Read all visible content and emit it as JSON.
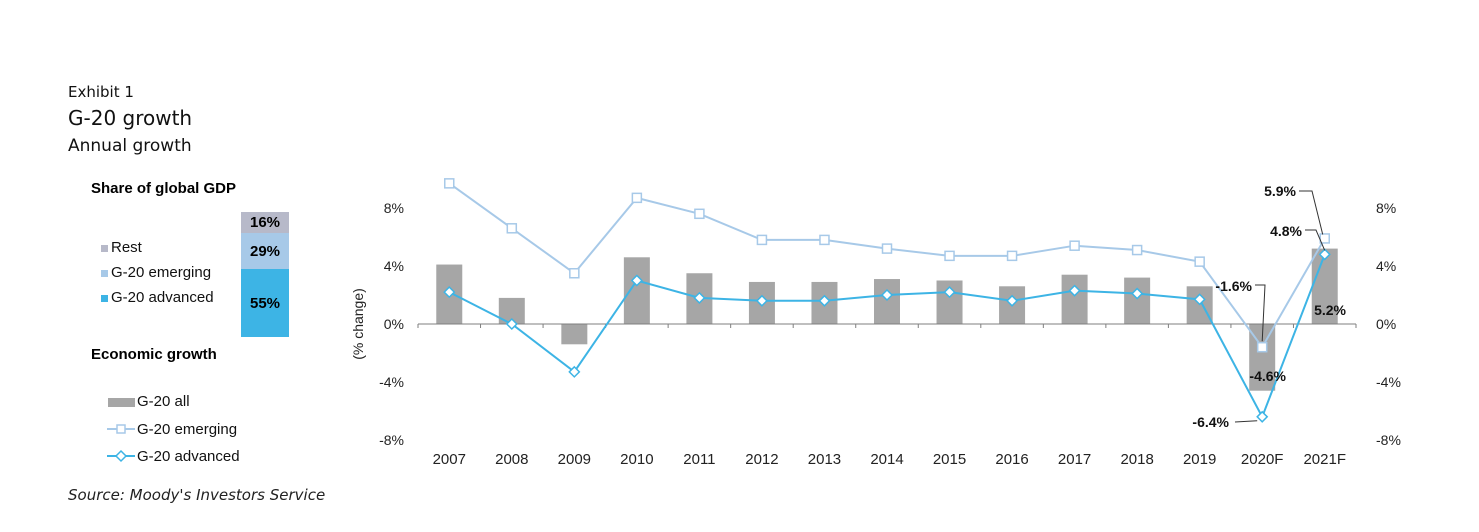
{
  "header": {
    "exhibit": "Exhibit 1",
    "title": "G-20 growth",
    "subtitle": "Annual growth"
  },
  "source": "Source: Moody's Investors Service",
  "share_panel": {
    "title": "Share of global GDP",
    "items": [
      {
        "label": "Rest",
        "value": "16%",
        "color": "#b7b9c9"
      },
      {
        "label": "G-20 emerging",
        "value": "29%",
        "color": "#a7c9e8"
      },
      {
        "label": "G-20 advanced",
        "value": "55%",
        "color": "#3db4e5"
      }
    ]
  },
  "growth_legend": {
    "title": "Economic growth",
    "items": [
      "G-20 all",
      "G-20 emerging",
      "G-20 advanced"
    ]
  },
  "chart_data": {
    "type": "bar",
    "categories": [
      "2007",
      "2008",
      "2009",
      "2010",
      "2011",
      "2012",
      "2013",
      "2014",
      "2015",
      "2016",
      "2017",
      "2018",
      "2019",
      "2020F",
      "2021F"
    ],
    "ylabel": "(% change)",
    "ylim": [
      -8,
      8
    ],
    "yticks": [
      "8%",
      "4%",
      "0%",
      "-4%",
      "-8%"
    ],
    "series": [
      {
        "name": "G-20 all",
        "kind": "bar",
        "color": "#a6a6a6",
        "values": [
          4.1,
          1.8,
          -1.4,
          4.6,
          3.5,
          2.9,
          2.9,
          3.1,
          3.0,
          2.6,
          3.4,
          3.2,
          2.6,
          -4.6,
          5.2
        ]
      },
      {
        "name": "G-20 emerging",
        "kind": "line",
        "color": "#a7c9e8",
        "values": [
          9.7,
          6.6,
          3.5,
          8.7,
          7.6,
          5.8,
          5.8,
          5.2,
          4.7,
          4.7,
          5.4,
          5.1,
          4.3,
          -1.6,
          5.9
        ]
      },
      {
        "name": "G-20 advanced",
        "kind": "line",
        "color": "#3db4e5",
        "values": [
          2.2,
          0.0,
          -3.3,
          3.0,
          1.8,
          1.6,
          1.6,
          2.0,
          2.2,
          1.6,
          2.3,
          2.1,
          1.7,
          -6.4,
          4.8
        ]
      }
    ],
    "annotations": [
      {
        "text": "5.9%",
        "series": "G-20 emerging",
        "category": "2021F"
      },
      {
        "text": "4.8%",
        "series": "G-20 advanced",
        "category": "2021F"
      },
      {
        "text": "-1.6%",
        "series": "G-20 emerging",
        "category": "2020F"
      },
      {
        "text": "5.2%",
        "series": "G-20 all",
        "category": "2021F"
      },
      {
        "text": "-4.6%",
        "series": "G-20 all",
        "category": "2020F"
      },
      {
        "text": "-6.4%",
        "series": "G-20 advanced",
        "category": "2020F"
      }
    ]
  }
}
